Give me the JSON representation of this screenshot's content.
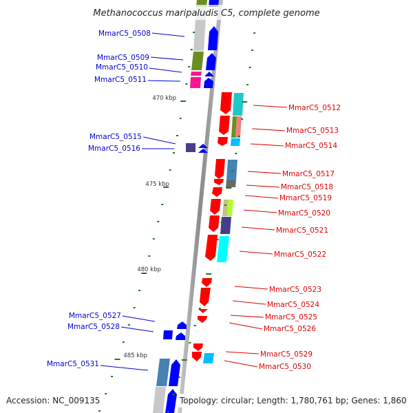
{
  "title": "Methanococcus maripaludis C5, complete genome",
  "footer": {
    "accession": "Accession: NC_009135",
    "summary": "Topology: circular; Length: 1,780,761 bp; Genes: 1,860"
  },
  "colors": {
    "forward_label": "#0000cc",
    "reverse_label": "#dd0000",
    "forward_gene": "#0000ff",
    "reverse_gene": "#ff0000",
    "backbone": "#999999",
    "tick": "#1a7a1a"
  },
  "kbp_ticks": [
    {
      "label": "470 kbp",
      "kbp": 470
    },
    {
      "label": "475 kbp",
      "kbp": 475
    },
    {
      "label": "480 kbp",
      "kbp": 480
    },
    {
      "label": "485 kbp",
      "kbp": 485
    }
  ],
  "forward_genes": [
    {
      "id": "MmarC5_0508",
      "cog_color": "#c8c8c8"
    },
    {
      "id": "MmarC5_0509",
      "cog_color": "#6b8e23"
    },
    {
      "id": "MmarC5_0510",
      "cog_color": "#ff1493"
    },
    {
      "id": "MmarC5_0511",
      "cog_color": "#ff1493"
    },
    {
      "id": "MmarC5_0515",
      "cog_color": "#483d8b"
    },
    {
      "id": "MmarC5_0516",
      "cog_color": "#483d8b"
    },
    {
      "id": "MmarC5_0527",
      "cog_color": "#0000ff"
    },
    {
      "id": "MmarC5_0528",
      "cog_color": "#0000ff"
    },
    {
      "id": "MmarC5_0531",
      "cog_color": "#4682b4"
    }
  ],
  "reverse_genes": [
    {
      "id": "MmarC5_0512",
      "cog_color": "#00cdcd"
    },
    {
      "id": "MmarC5_0513",
      "cog_color": "#6b8e23"
    },
    {
      "id": "MmarC5_0514",
      "cog_color": "#00bfff"
    },
    {
      "id": "MmarC5_0517",
      "cog_color": "#4682b4"
    },
    {
      "id": "MmarC5_0518",
      "cog_color": "#696969"
    },
    {
      "id": "MmarC5_0519",
      "cog_color": ""
    },
    {
      "id": "MmarC5_0520",
      "cog_color": "#adff2f"
    },
    {
      "id": "MmarC5_0521",
      "cog_color": "#483d8b"
    },
    {
      "id": "MmarC5_0522",
      "cog_color": "#00ffff"
    },
    {
      "id": "MmarC5_0523",
      "cog_color": ""
    },
    {
      "id": "MmarC5_0524",
      "cog_color": ""
    },
    {
      "id": "MmarC5_0525",
      "cog_color": ""
    },
    {
      "id": "MmarC5_0526",
      "cog_color": ""
    },
    {
      "id": "MmarC5_0529",
      "cog_color": ""
    },
    {
      "id": "MmarC5_0530",
      "cog_color": "#00bfff"
    }
  ]
}
